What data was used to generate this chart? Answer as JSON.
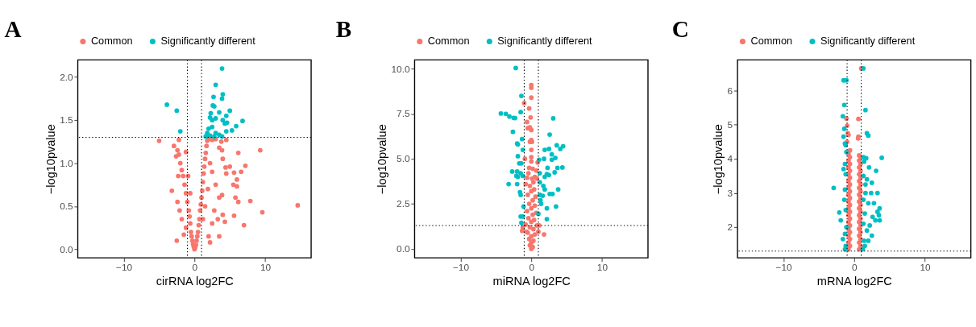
{
  "chart_data": [
    {
      "type": "scatter",
      "title": "A",
      "xlabel": "cirRNA log2FC",
      "ylabel": "−log10pvalue",
      "legend": "top",
      "marker": "circle",
      "grid": false,
      "xlim": [
        -16.5,
        16.5
      ],
      "xticks": [
        -10,
        0,
        10
      ],
      "ylim": [
        -0.1,
        2.2
      ],
      "yticks": [
        {
          "value": 0,
          "label": "0.0"
        },
        {
          "value": 0.5,
          "label": "0.5"
        },
        {
          "value": 1,
          "label": "1.0"
        },
        {
          "value": 1.5,
          "label": "1.5"
        },
        {
          "value": 2,
          "label": "2.0"
        }
      ],
      "ref_lines": [
        {
          "axis": "x",
          "value": -1,
          "label": null,
          "color": "#000000",
          "line_style": "dotted"
        },
        {
          "axis": "x",
          "value": 1,
          "label": null,
          "color": "#000000",
          "line_style": "dotted"
        },
        {
          "axis": "y",
          "value": 1.3,
          "label": null,
          "color": "#000000",
          "line_style": "dotted"
        }
      ],
      "series": [
        {
          "name": "Common",
          "color": "#f8766d",
          "x": [
            0,
            0.1,
            -0.1,
            0.2,
            -0.2,
            0.3,
            -0.3,
            0.4,
            -0.4,
            0.5,
            -0.5,
            0.6,
            -0.6,
            0.7,
            -0.7,
            0.8,
            -0.8,
            0.9,
            -1.0,
            1.0,
            -1.2,
            1.1,
            -1.4,
            1.2,
            -1.6,
            1.3,
            -1.8,
            1.4,
            -2.0,
            1.5,
            -2.2,
            1.6,
            -2.4,
            1.7,
            -2.9,
            1.8,
            -2.2,
            2.0,
            -5.0,
            2.5,
            3.0,
            4.5,
            3.8,
            -1.2,
            -2.6,
            -2.3,
            -3.2,
            -2.4,
            -2.1,
            -1.8,
            -1.2,
            -1.5,
            -2.5,
            2.5,
            3.0,
            3.5,
            2.8,
            3.3,
            2.5,
            2.0,
            2.2,
            3.5,
            4.0,
            4.4,
            5.0,
            5.6,
            6.2,
            7.2,
            6.6,
            4.5,
            6.0,
            5.5,
            6.0,
            3.9,
            5.8,
            6.2,
            7.9,
            14.6,
            9.6,
            4.0,
            5.6,
            4.3,
            7.0,
            9.3,
            3.9,
            3.5,
            2.2,
            1.9,
            1.5,
            1.2,
            -0.9,
            -0.6
          ],
          "values": [
            0,
            0.02,
            0.03,
            0.05,
            0.06,
            0.1,
            0.1,
            0.15,
            0.15,
            0.2,
            0.2,
            0.28,
            0.3,
            0.35,
            0.38,
            0.45,
            0.45,
            0.52,
            0.55,
            0.6,
            0.65,
            0.68,
            0.75,
            0.78,
            0.85,
            0.88,
            0.92,
            0.96,
            1.0,
            1.05,
            1.1,
            1.12,
            1.15,
            1.2,
            1.2,
            1.26,
            1.27,
            1.28,
            1.26,
            1.27,
            1.28,
            1.27,
            1.25,
            1.13,
            1.08,
            0.85,
            0.68,
            0.55,
            0.45,
            0.35,
            0.25,
            0.17,
            0.1,
            0.9,
            0.75,
            0.6,
            0.45,
            0.35,
            0.3,
            0.15,
            0.08,
            0.15,
            1.05,
            0.95,
            0.96,
            0.89,
            1.12,
            0.97,
            0.9,
            0.88,
            0.81,
            0.75,
            0.73,
            0.63,
            0.6,
            0.55,
            0.56,
            0.51,
            0.43,
            0.4,
            0.39,
            0.32,
            0.28,
            1.15,
            1.15,
            1.18,
            1.0,
            0.7,
            0.5,
            0.35,
            0.85,
            0.65
          ]
        },
        {
          "name": "Significantly different",
          "color": "#00bfc4",
          "x": [
            -3.9,
            -2.5,
            -2.0,
            3.9,
            3.0,
            4.0,
            3.9,
            2.7,
            2.6,
            2.8,
            2.3,
            3.5,
            5.0,
            4.5,
            4.0,
            2.2,
            2.5,
            3.0,
            4.6,
            4.3,
            6.8,
            5.9,
            5.3,
            4.5,
            2.0,
            2.5,
            3.0,
            1.8,
            2.2,
            2.8,
            1.6,
            3.5,
            3.9
          ],
          "values": [
            1.68,
            1.61,
            1.37,
            2.1,
            1.91,
            1.8,
            1.75,
            1.77,
            1.67,
            1.66,
            1.58,
            1.59,
            1.61,
            1.55,
            1.5,
            1.53,
            1.5,
            1.52,
            1.47,
            1.46,
            1.49,
            1.43,
            1.38,
            1.37,
            1.4,
            1.42,
            1.35,
            1.35,
            1.32,
            1.31,
            1.31,
            1.33,
            1.31
          ]
        }
      ]
    },
    {
      "type": "scatter",
      "title": "B",
      "xlabel": "miRNA log2FC",
      "ylabel": "−log10pvalue",
      "legend": "top",
      "marker": "circle",
      "grid": false,
      "xlim": [
        -16.5,
        16.5
      ],
      "xticks": [
        -10,
        0,
        10
      ],
      "ylim": [
        -0.5,
        10.5
      ],
      "yticks": [
        {
          "value": 0,
          "label": "0.0"
        },
        {
          "value": 2.5,
          "label": "2.5"
        },
        {
          "value": 5,
          "label": "5.0"
        },
        {
          "value": 7.5,
          "label": "7.5"
        },
        {
          "value": 10,
          "label": "10.0"
        }
      ],
      "ref_lines": [
        {
          "axis": "x",
          "value": -1,
          "label": null,
          "color": "#000000",
          "line_style": "dotted"
        },
        {
          "axis": "x",
          "value": 1,
          "label": null,
          "color": "#000000",
          "line_style": "dotted"
        },
        {
          "axis": "y",
          "value": 1.3,
          "label": null,
          "color": "#000000",
          "line_style": "dotted"
        }
      ],
      "series": [
        {
          "name": "Common",
          "color": "#f8766d",
          "x": [
            0,
            0,
            0,
            -1.0,
            -0.3,
            -0.1,
            -0.6,
            -0.2,
            0,
            -0.5,
            0,
            -0.2,
            0.1,
            0,
            0,
            -0.9,
            0,
            0.9,
            -0.3,
            0.2,
            0.7,
            -0.4,
            0.5,
            -0.6,
            0.1,
            0.8,
            -0.8,
            0.3,
            -0.2,
            0.4,
            0,
            -0.5,
            0.6,
            0.2,
            -0.3,
            0.5,
            0,
            -0.6,
            0.7,
            0.2,
            -0.4,
            0.4,
            0,
            -0.8,
            0.8,
            -0.2,
            0.3,
            -1.3,
            1.0,
            -0.5,
            0.5,
            1.8,
            0,
            -0.3,
            0.3,
            0,
            -0.2,
            0.2,
            0,
            -1.2,
            1.1,
            -0.7
          ],
          "values": [
            9.1,
            8.95,
            8.4,
            8.1,
            7.8,
            7.3,
            7.05,
            6.75,
            6.6,
            6.7,
            6.05,
            5.95,
            5.95,
            5.5,
            5.1,
            5.0,
            4.85,
            4.8,
            4.5,
            4.45,
            4.35,
            4.2,
            4.0,
            3.95,
            3.9,
            3.9,
            3.6,
            3.7,
            3.5,
            3.3,
            3.2,
            3.0,
            2.9,
            2.7,
            2.5,
            2.4,
            2.25,
            2.1,
            2.0,
            1.9,
            1.7,
            1.6,
            1.5,
            1.35,
            1.3,
            1.2,
            1.1,
            1.0,
            0.95,
            0.9,
            0.8,
            0.8,
            0.7,
            0.55,
            0.45,
            0.35,
            0.2,
            0.1,
            0,
            1.2,
            1.3,
            0.95
          ]
        },
        {
          "name": "Significantly different",
          "color": "#00bfc4",
          "x": [
            -2.2,
            -1.4,
            -1.5,
            -4.3,
            -3.6,
            -3.1,
            -2.5,
            -2.3,
            3.1,
            -2.6,
            2.6,
            -1.3,
            -2.0,
            -1.9,
            -1.2,
            3.6,
            4.5,
            4.1,
            1.9,
            2.5,
            2.9,
            3.4,
            1.8,
            2.9,
            1.1,
            -1.7,
            -1.9,
            -1.4,
            2.3,
            3.7,
            4.4,
            -2.7,
            -2.0,
            -1.5,
            -1.2,
            -1.9,
            -2.1,
            1.2,
            2.2,
            2.5,
            1.9,
            3.3,
            -3.2,
            -2.0,
            1.2,
            1.7,
            1.9,
            3.8,
            -1.6,
            -1.5,
            1.2,
            1.6,
            2.6,
            3.0,
            1.3,
            1.4,
            2.2,
            3.5,
            -1.1,
            1.0,
            -1.5,
            -1.2,
            2.2,
            -1.4
          ],
          "values": [
            10.05,
            8.5,
            7.6,
            7.52,
            7.5,
            7.35,
            7.28,
            7.27,
            7.25,
            6.5,
            6.35,
            6.1,
            5.85,
            5.8,
            5.5,
            5.75,
            5.7,
            5.55,
            5.5,
            5.55,
            5.25,
            5.05,
            5.0,
            4.95,
            4.95,
            4.75,
            5.15,
            4.75,
            4.5,
            4.5,
            4.52,
            4.3,
            4.3,
            4.2,
            4.05,
            4.0,
            4.05,
            4.2,
            4.15,
            4.1,
            4.0,
            4.25,
            3.6,
            3.6,
            3.7,
            3.5,
            3.3,
            3.3,
            3.15,
            3.0,
            3.0,
            2.95,
            3.05,
            3.05,
            2.7,
            2.5,
            2.25,
            2.35,
            2.35,
            1.95,
            1.8,
            1.8,
            1.65,
            1.45
          ]
        }
      ]
    },
    {
      "type": "scatter",
      "title": "C",
      "xlabel": "mRNA log2FC",
      "ylabel": "−log10pvalue",
      "legend": "top",
      "marker": "circle",
      "grid": false,
      "xlim": [
        -16.5,
        16.5
      ],
      "xticks": [
        -10,
        0,
        10
      ],
      "ylim": [
        1.1,
        6.9
      ],
      "yticks": [
        2,
        3,
        4,
        5,
        6
      ],
      "ref_lines": [
        {
          "axis": "x",
          "value": -1,
          "label": null,
          "color": "#000000",
          "line_style": "dotted"
        },
        {
          "axis": "x",
          "value": 1,
          "label": null,
          "color": "#000000",
          "line_style": "dotted"
        },
        {
          "axis": "y",
          "value": 1.3,
          "label": null,
          "color": "#000000",
          "line_style": "dotted"
        }
      ],
      "series": [
        {
          "name": "Common",
          "color": "#f8766d",
          "x": [
            -0.8,
            -0.6,
            -0.8,
            -0.6,
            -0.8,
            -0.6,
            -0.8,
            -0.6,
            -0.8,
            -0.6,
            -0.8,
            -0.6,
            -0.8,
            -0.6,
            -0.8,
            -0.6,
            -0.8,
            -0.6,
            -0.8,
            -0.6,
            -0.8,
            -0.6,
            -0.8,
            -0.6,
            -0.8,
            -0.6,
            -0.8,
            -0.6,
            -0.8,
            -0.6,
            -1.1,
            -1.0,
            -0.9,
            -0.8,
            -1.0,
            0.7,
            0.9,
            0.7,
            0.9,
            0.7,
            0.9,
            0.7,
            0.9,
            0.7,
            0.9,
            0.7,
            0.9,
            0.7,
            0.9,
            0.7,
            0.9,
            0.7,
            0.9,
            0.7,
            0.9,
            0.7,
            0.9,
            0.7,
            0.9,
            0.7,
            0.9,
            0.7,
            0.9,
            0.7,
            0.6,
            0.6,
            0.55,
            1.0
          ],
          "values": [
            1.35,
            1.45,
            1.55,
            1.65,
            1.75,
            1.85,
            1.95,
            2.05,
            2.15,
            2.25,
            2.35,
            2.45,
            2.55,
            2.65,
            2.75,
            2.85,
            2.95,
            3.05,
            3.15,
            3.25,
            3.35,
            3.45,
            3.55,
            3.65,
            3.75,
            3.85,
            3.95,
            4.05,
            4.15,
            4.25,
            5.18,
            4.97,
            4.75,
            4.7,
            4.5,
            1.35,
            1.45,
            1.55,
            1.65,
            1.75,
            1.85,
            1.95,
            2.05,
            2.15,
            2.25,
            2.35,
            2.45,
            2.55,
            2.65,
            2.75,
            2.85,
            2.95,
            3.05,
            3.15,
            3.25,
            3.35,
            3.45,
            3.55,
            3.65,
            3.75,
            3.85,
            3.95,
            4.05,
            4.1,
            5.17,
            4.65,
            4.6,
            6.65
          ]
        },
        {
          "name": "Significantly different",
          "color": "#00bfc4",
          "x": [
            1.3,
            -1.5,
            -1.1,
            -1.4,
            1.6,
            -1.6,
            -1.4,
            -1.5,
            1.8,
            2.0,
            -1.3,
            -1.2,
            -1.1,
            3.9,
            1.7,
            1.4,
            2.1,
            3.1,
            -1.5,
            -1.2,
            1.3,
            1.8,
            2.5,
            -2.9,
            -1.3,
            1.6,
            2.4,
            3.3,
            1.3,
            2.0,
            3.6,
            3.3,
            -2.1,
            -1.2,
            1.5,
            2.6,
            3.0,
            3.6,
            -1.9,
            -1.1,
            1.3,
            2.2,
            1.8,
            2.5,
            -1.3,
            -1.6,
            1.4,
            -1.2,
            1.5,
            -1.3,
            1.2,
            2.0,
            3.5,
            -1.4,
            -1.3,
            1.3,
            2.8,
            1.6
          ],
          "values": [
            6.65,
            6.3,
            6.3,
            5.58,
            5.43,
            5.25,
            4.88,
            4.65,
            4.75,
            4.68,
            4.45,
            4.4,
            4.2,
            4.03,
            4.02,
            3.92,
            3.75,
            3.65,
            3.7,
            3.55,
            3.5,
            3.4,
            3.3,
            3.15,
            3.1,
            3.0,
            3.0,
            3.0,
            2.8,
            2.7,
            2.55,
            2.45,
            2.43,
            2.5,
            2.4,
            2.3,
            2.2,
            2.2,
            2.2,
            2.0,
            2.1,
            2.05,
            1.9,
            1.75,
            1.8,
            1.65,
            1.6,
            1.45,
            1.45,
            1.35,
            1.35,
            1.6,
            2.35,
            2.8,
            3.85,
            4.05,
            2.7,
            3.25
          ]
        }
      ]
    }
  ]
}
